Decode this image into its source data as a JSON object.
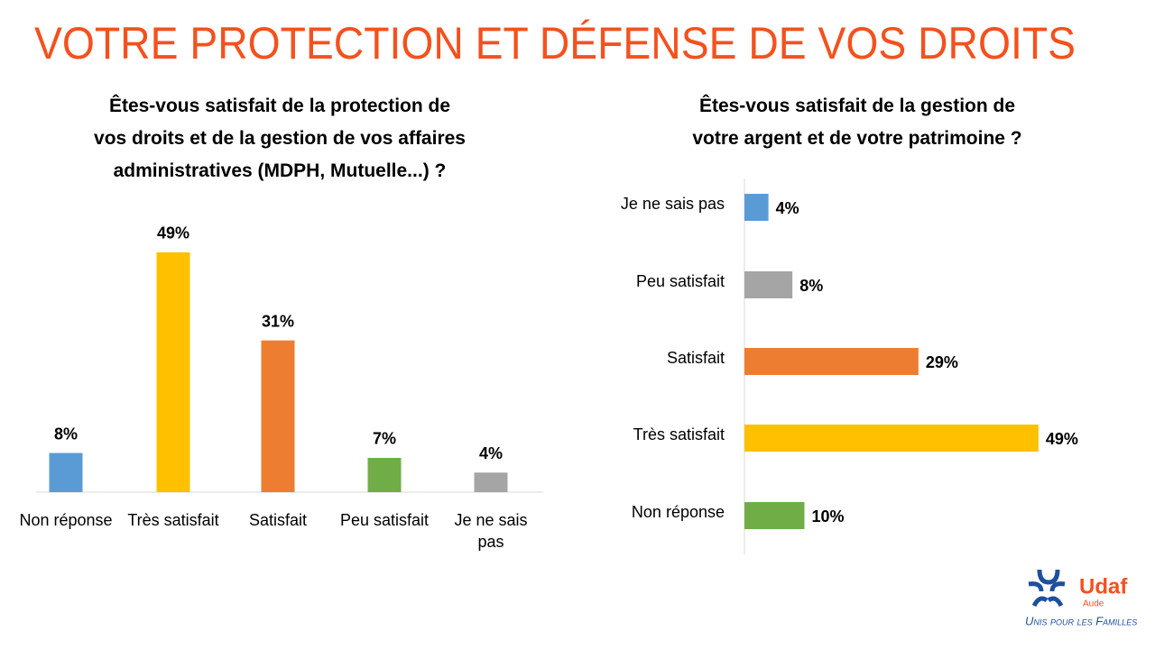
{
  "title": "VOTRE PROTECTION ET DÉFENSE DE VOS DROITS",
  "chart_data": [
    {
      "type": "bar",
      "title": "Êtes-vous satisfait de la protection de\nvos droits et de la gestion de vos affaires\nadministratives (MDPH, Mutuelle...) ?",
      "categories": [
        "Non réponse",
        "Très satisfait",
        "Satisfait",
        "Peu satisfait",
        "Je ne sais pas"
      ],
      "values": [
        8,
        49,
        31,
        7,
        4
      ],
      "value_labels": [
        "8%",
        "49%",
        "31%",
        "7%",
        "4%"
      ],
      "colors": [
        "#5b9bd5",
        "#ffc000",
        "#ed7d31",
        "#70ad47",
        "#a5a5a5"
      ]
    },
    {
      "type": "hbar",
      "title": "Êtes-vous satisfait de la gestion de\nvotre argent et de votre patrimoine ?",
      "categories": [
        "Je ne sais pas",
        "Peu satisfait",
        "Satisfait",
        "Très satisfait",
        "Non réponse"
      ],
      "values": [
        4,
        8,
        29,
        49,
        10
      ],
      "value_labels": [
        "4%",
        "8%",
        "29%",
        "49%",
        "10%"
      ],
      "colors": [
        "#5b9bd5",
        "#a5a5a5",
        "#ed7d31",
        "#ffc000",
        "#70ad47"
      ]
    }
  ],
  "logo": {
    "name": "Udaf",
    "region": "Aude",
    "tagline": "Unis pour les Familles"
  }
}
